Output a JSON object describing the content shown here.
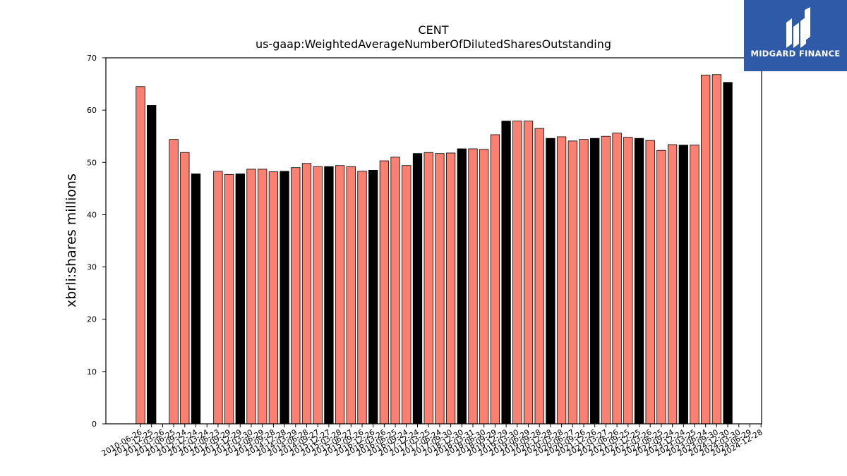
{
  "brand": {
    "name": "MIDGARD FINANCE",
    "color": "#2f5aa8"
  },
  "chart_data": {
    "type": "bar",
    "title": "CENT",
    "subtitle": "us-gaap:WeightedAverageNumberOfDilutedSharesOutstanding",
    "xlabel": "",
    "ylabel": "xbrli:shares millions",
    "ylim": [
      0,
      70
    ],
    "yticks": [
      0,
      10,
      20,
      30,
      40,
      50,
      60,
      70
    ],
    "grid": false,
    "colors": {
      "default": "#fa8072",
      "highlight": "#000000",
      "edge": "#000000"
    },
    "categories": [
      "2010-06-26",
      "2011-12-25",
      "2011-03-26",
      "2011-06-25",
      "2011-09-24",
      "2012-12-24",
      "2012-03-24",
      "2012-06-23",
      "2012-09-29",
      "2013-12-29",
      "2013-03-30",
      "2013-06-29",
      "2013-09-28",
      "2014-12-28",
      "2014-03-29",
      "2014-06-28",
      "2014-09-27",
      "2015-12-27",
      "2015-03-28",
      "2015-06-27",
      "2015-09-26",
      "2016-12-26",
      "2016-03-26",
      "2016-06-25",
      "2016-09-24",
      "2017-12-24",
      "2017-03-25",
      "2017-06-24",
      "2017-09-30",
      "2018-12-30",
      "2018-03-31",
      "2018-06-30",
      "2018-09-29",
      "2019-12-29",
      "2019-03-30",
      "2019-06-29",
      "2019-09-28",
      "2020-12-28",
      "2020-03-28",
      "2020-06-27",
      "2020-09-26",
      "2021-12-26",
      "2021-03-27",
      "2021-06-26",
      "2021-09-25",
      "2022-12-25",
      "2022-03-26",
      "2022-06-25",
      "2022-09-24",
      "2023-12-24",
      "2023-03-25",
      "2023-06-24",
      "2023-09-30",
      "2024-12-30",
      "2024-03-30",
      "2024-06-29",
      "2024-12-28"
    ],
    "values": [
      64.5,
      60.9,
      null,
      54.4,
      51.9,
      47.8,
      null,
      48.3,
      47.7,
      47.8,
      48.7,
      48.7,
      48.2,
      48.3,
      49.0,
      49.8,
      49.2,
      49.2,
      49.4,
      49.2,
      48.3,
      48.5,
      50.3,
      51.0,
      49.4,
      51.7,
      51.9,
      51.7,
      51.8,
      52.6,
      52.6,
      52.5,
      55.3,
      57.9,
      57.9,
      57.9,
      56.5,
      54.6,
      54.9,
      54.1,
      54.4,
      54.6,
      55.0,
      55.6,
      54.8,
      54.6,
      54.2,
      52.3,
      53.4,
      53.3,
      53.3,
      66.7,
      66.8,
      65.3,
      null,
      null,
      null
    ],
    "highlight": [
      false,
      true,
      false,
      false,
      false,
      true,
      false,
      false,
      false,
      true,
      false,
      false,
      false,
      true,
      false,
      false,
      false,
      true,
      false,
      false,
      false,
      true,
      false,
      false,
      false,
      true,
      false,
      false,
      false,
      true,
      false,
      false,
      false,
      true,
      false,
      false,
      false,
      true,
      false,
      false,
      false,
      true,
      false,
      false,
      false,
      true,
      false,
      false,
      false,
      true,
      false,
      false,
      false,
      true,
      false,
      false,
      false
    ]
  }
}
